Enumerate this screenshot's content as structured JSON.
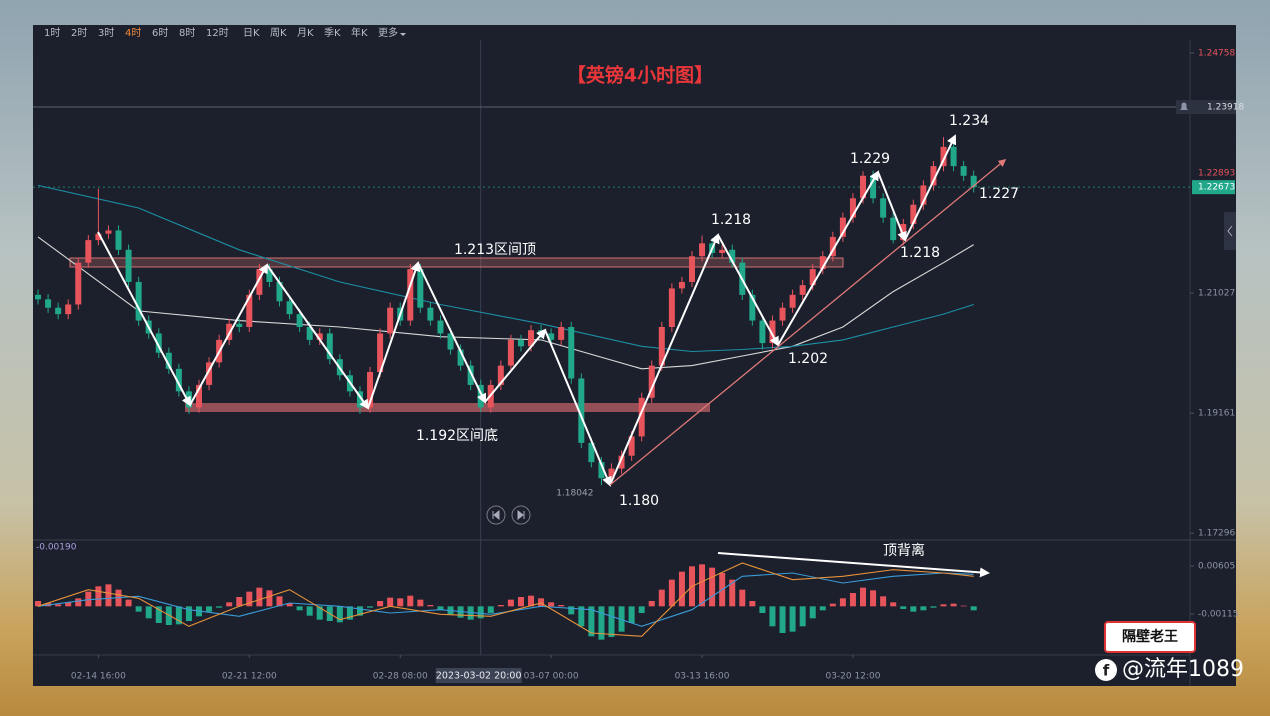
{
  "toolbar": {
    "items": [
      "1时",
      "2时",
      "3时",
      "4时",
      "6时",
      "8时",
      "12时",
      "日K",
      "周K",
      "月K",
      "季K",
      "年K",
      "更多"
    ],
    "active": 3
  },
  "chart_data": {
    "type": "candlestick",
    "title": "【英镑4小时图】",
    "open": [
      1.21,
      1.2093,
      1.208,
      1.207,
      1.2085,
      1.215,
      1.2185,
      1.2195,
      1.22,
      1.217,
      1.212,
      1.206,
      1.204,
      1.201,
      1.1985,
      1.195,
      1.1925,
      1.196,
      1.1995,
      1.203,
      1.2055,
      1.205,
      1.21,
      1.214,
      1.212,
      1.209,
      1.207,
      1.205,
      1.203,
      1.204,
      1.2,
      1.1975,
      1.195,
      1.1925,
      1.198,
      1.204,
      1.208,
      1.206,
      1.214,
      1.208,
      1.206,
      1.204,
      1.2015,
      1.199,
      1.196,
      1.1925,
      1.196,
      1.199,
      1.203,
      1.202,
      1.2045,
      1.204,
      1.203,
      1.205,
      1.197,
      1.187,
      1.184,
      1.1815,
      1.183,
      1.185,
      1.188,
      1.194,
      1.199,
      1.205,
      1.211,
      1.212,
      1.216,
      1.218,
      1.2165,
      1.217,
      1.215,
      1.21,
      1.206,
      1.2025,
      1.206,
      1.208,
      1.21,
      1.2115,
      1.214,
      1.216,
      1.219,
      1.222,
      1.225,
      1.2285,
      1.225,
      1.222,
      1.2185,
      1.221,
      1.224,
      1.227,
      1.23,
      1.233,
      1.23,
      1.2285
    ],
    "high": [
      1.2108,
      1.2101,
      1.2088,
      1.2093,
      1.2158,
      1.2193,
      1.2265,
      1.2208,
      1.2208,
      1.2178,
      1.2128,
      1.2068,
      1.2048,
      1.2018,
      1.1993,
      1.1958,
      1.1968,
      1.2003,
      1.2038,
      1.2063,
      1.2063,
      1.2108,
      1.2148,
      1.2148,
      1.2128,
      1.2098,
      1.2078,
      1.2058,
      1.2048,
      1.2048,
      1.2008,
      1.1983,
      1.1958,
      1.1988,
      1.2048,
      1.2088,
      1.2088,
      1.2148,
      1.2148,
      1.2088,
      1.2068,
      1.2048,
      1.2023,
      1.1998,
      1.1968,
      1.1968,
      1.1998,
      1.2038,
      1.2038,
      1.2053,
      1.2053,
      1.2048,
      1.2058,
      1.2058,
      1.1978,
      1.1878,
      1.1848,
      1.1838,
      1.1858,
      1.1888,
      1.1948,
      1.1998,
      1.2058,
      1.2118,
      1.2128,
      1.2168,
      1.2192,
      1.2188,
      1.2178,
      1.2178,
      1.2158,
      1.2108,
      1.2068,
      1.2068,
      1.2088,
      1.2108,
      1.2123,
      1.2148,
      1.2168,
      1.2198,
      1.2228,
      1.2258,
      1.2292,
      1.2293,
      1.2258,
      1.2228,
      1.2218,
      1.2248,
      1.2278,
      1.2308,
      1.2345,
      1.2338,
      1.2308,
      1.2293
    ],
    "low": [
      1.2085,
      1.2072,
      1.2062,
      1.2062,
      1.2077,
      1.2142,
      1.2177,
      1.2187,
      1.2162,
      1.2112,
      1.2052,
      1.2032,
      1.2002,
      1.1977,
      1.1942,
      1.1915,
      1.1917,
      1.1952,
      1.1987,
      1.2022,
      1.2042,
      1.2042,
      1.2092,
      1.2112,
      1.2082,
      1.2062,
      1.2042,
      1.2022,
      1.2022,
      1.1992,
      1.1967,
      1.1942,
      1.1915,
      1.1917,
      1.1972,
      1.2032,
      1.2052,
      1.2052,
      1.2072,
      1.2052,
      1.2032,
      1.2007,
      1.1982,
      1.1952,
      1.1918,
      1.1917,
      1.1952,
      1.1982,
      1.2012,
      1.2012,
      1.2032,
      1.2022,
      1.2022,
      1.1962,
      1.1862,
      1.1832,
      1.18042,
      1.1807,
      1.1822,
      1.1842,
      1.1872,
      1.1932,
      1.1982,
      1.2042,
      1.2102,
      1.2112,
      1.2152,
      1.2157,
      1.2157,
      1.2142,
      1.2092,
      1.2052,
      1.2015,
      1.2017,
      1.2052,
      1.2072,
      1.2092,
      1.2107,
      1.2132,
      1.2152,
      1.2182,
      1.2212,
      1.2242,
      1.2242,
      1.2212,
      1.218,
      1.2177,
      1.2202,
      1.2232,
      1.2262,
      1.2292,
      1.2292,
      1.2277,
      1.2259
    ],
    "close": [
      1.2093,
      1.208,
      1.207,
      1.2085,
      1.215,
      1.2185,
      1.2195,
      1.22,
      1.217,
      1.212,
      1.206,
      1.204,
      1.201,
      1.1985,
      1.195,
      1.1925,
      1.196,
      1.1995,
      1.203,
      1.2055,
      1.205,
      1.21,
      1.214,
      1.212,
      1.209,
      1.207,
      1.205,
      1.203,
      1.204,
      1.2,
      1.1975,
      1.195,
      1.1925,
      1.198,
      1.204,
      1.208,
      1.206,
      1.214,
      1.208,
      1.206,
      1.204,
      1.2015,
      1.199,
      1.196,
      1.1925,
      1.196,
      1.199,
      1.203,
      1.202,
      1.2045,
      1.204,
      1.203,
      1.205,
      1.197,
      1.187,
      1.184,
      1.1815,
      1.183,
      1.185,
      1.188,
      1.194,
      1.199,
      1.205,
      1.211,
      1.212,
      1.216,
      1.218,
      1.2165,
      1.217,
      1.215,
      1.21,
      1.206,
      1.2025,
      1.206,
      1.208,
      1.21,
      1.2115,
      1.214,
      1.216,
      1.219,
      1.222,
      1.225,
      1.2285,
      1.225,
      1.222,
      1.2185,
      1.221,
      1.224,
      1.227,
      1.23,
      1.233,
      1.23,
      1.2285,
      1.22673
    ],
    "up_color": "#e8545c",
    "down_color": "#21a88b",
    "xlim": [
      -0.5,
      114.5
    ],
    "xticks": [
      {
        "value": 6,
        "label": "02-14 16:00"
      },
      {
        "value": 21,
        "label": "02-21 12:00"
      },
      {
        "value": 36,
        "label": "02-28 08:00"
      },
      {
        "value": 51,
        "label": "03-07 00:00"
      },
      {
        "value": 66,
        "label": "03-13 16:00"
      },
      {
        "value": 81,
        "label": "03-20 12:00"
      }
    ],
    "crosshair": {
      "value": 44,
      "label": "2023-03-02 20:00"
    },
    "ylim": [
      1.1719,
      1.2496
    ],
    "yticks": [
      1.17296,
      1.19161,
      1.21027,
      1.24758
    ],
    "price_tags": [
      {
        "value": 1.23918,
        "color": "#d8dce4"
      },
      {
        "value": 1.22893,
        "color": "#e8545c"
      },
      {
        "value": 1.22673,
        "color": "#21a88b"
      }
    ],
    "low_marker": 1.18042,
    "moving_averages": [
      {
        "color": "#d9d9d9",
        "x": [
          0,
          10,
          20,
          30,
          40,
          50,
          60,
          65,
          70,
          75,
          80,
          85,
          90,
          93
        ],
        "values": [
          1.219,
          1.2075,
          1.206,
          1.205,
          1.2035,
          1.203,
          1.1985,
          1.199,
          1.2005,
          1.202,
          1.205,
          1.2105,
          1.215,
          1.2178
        ]
      },
      {
        "color": "#1d8fa6",
        "x": [
          0,
          10,
          20,
          30,
          40,
          50,
          60,
          65,
          70,
          75,
          80,
          85,
          90,
          93
        ],
        "values": [
          1.227,
          1.2235,
          1.217,
          1.212,
          1.2085,
          1.2055,
          1.202,
          1.2012,
          1.2015,
          1.202,
          1.203,
          1.205,
          1.207,
          1.2085
        ]
      }
    ],
    "annotations": [
      "1.213区间顶",
      "1.192区间底",
      "1.218",
      "1.229",
      "1.234",
      "1.227",
      "1.218",
      "1.202",
      "1.180",
      "顶背离"
    ],
    "macd": {
      "readout": "-0.00190",
      "ylim": [
        -0.0073,
        0.0098
      ],
      "yticks": [
        -0.00115,
        0.00605
      ],
      "values": [
        0.0008,
        0.0005,
        0.0003,
        0.0006,
        0.0012,
        0.0022,
        0.003,
        0.0033,
        0.0025,
        0.001,
        -0.0008,
        -0.0018,
        -0.0025,
        -0.0028,
        -0.0027,
        -0.0022,
        -0.0015,
        -0.0008,
        -0.0002,
        0.0006,
        0.0014,
        0.0022,
        0.0028,
        0.0024,
        0.0015,
        0.0005,
        -0.0006,
        -0.0014,
        -0.002,
        -0.0022,
        -0.0024,
        -0.002,
        -0.0014,
        -0.0002,
        0.0008,
        0.0013,
        0.0012,
        0.0016,
        0.001,
        0.0002,
        -0.0006,
        -0.0012,
        -0.0017,
        -0.002,
        -0.0018,
        -0.001,
        0.0002,
        0.001,
        0.0014,
        0.0016,
        0.0012,
        0.0006,
        0.0002,
        -0.0012,
        -0.003,
        -0.0045,
        -0.005,
        -0.0046,
        -0.0038,
        -0.0025,
        -0.001,
        0.0008,
        0.0025,
        0.004,
        0.0052,
        0.006,
        0.0063,
        0.0058,
        0.005,
        0.004,
        0.0025,
        0.0008,
        -0.001,
        -0.003,
        -0.004,
        -0.0038,
        -0.003,
        -0.0018,
        -0.0006,
        0.0004,
        0.0012,
        0.002,
        0.0028,
        0.0024,
        0.0015,
        0.0006,
        -0.0004,
        -0.0008,
        -0.0006,
        -0.0002,
        0.0003,
        0.0004,
        0.0001,
        -0.0006
      ],
      "dif": {
        "color": "#e8923a",
        "x": [
          0,
          5,
          10,
          15,
          20,
          25,
          30,
          35,
          40,
          45,
          50,
          55,
          60,
          65,
          70,
          75,
          80,
          85,
          90,
          93
        ],
        "values": [
          0.0,
          0.0025,
          0.0012,
          -0.003,
          0.0,
          0.0025,
          -0.002,
          0.0,
          -0.0012,
          -0.0015,
          0.0005,
          -0.004,
          -0.0045,
          0.003,
          0.0065,
          0.004,
          0.0045,
          0.0055,
          0.005,
          0.0045
        ]
      },
      "dea": {
        "color": "#3a9bd8",
        "x": [
          0,
          5,
          10,
          15,
          20,
          25,
          30,
          35,
          40,
          45,
          50,
          55,
          60,
          65,
          70,
          75,
          80,
          85,
          90,
          93
        ],
        "values": [
          0.0,
          0.001,
          0.0015,
          -0.0005,
          -0.0015,
          0.0005,
          0.0,
          -0.001,
          -0.0005,
          -0.0012,
          0.0,
          -0.0005,
          -0.003,
          -0.0005,
          0.0045,
          0.005,
          0.0035,
          0.0045,
          0.005,
          0.0048
        ]
      }
    }
  },
  "watermark": {
    "logo": "隔壁老王",
    "handle": "@流年1089"
  }
}
